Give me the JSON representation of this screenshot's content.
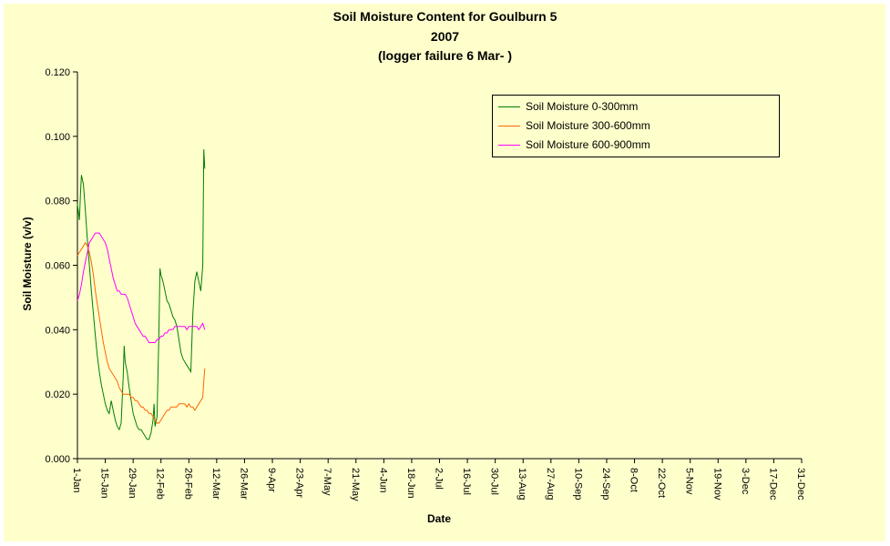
{
  "chart_data": {
    "type": "line",
    "title": [
      "Soil Moisture Content for Goulburn 5",
      "2007",
      "(logger failure 6 Mar-    )"
    ],
    "xlabel": "Date",
    "ylabel": "Soil Moisture (v/v)",
    "ylim": [
      0,
      0.12
    ],
    "yticks": [
      "0.000",
      "0.020",
      "0.040",
      "0.060",
      "0.080",
      "0.100",
      "0.120"
    ],
    "xticks": [
      "1-Jan",
      "15-Jan",
      "29-Jan",
      "12-Feb",
      "26-Feb",
      "12-Mar",
      "26-Mar",
      "9-Apr",
      "23-Apr",
      "7-May",
      "21-May",
      "4-Jun",
      "18-Jun",
      "2-Jul",
      "16-Jul",
      "30-Jul",
      "13-Aug",
      "27-Aug",
      "10-Sep",
      "24-Sep",
      "8-Oct",
      "22-Oct",
      "5-Nov",
      "19-Nov",
      "3-Dec",
      "17-Dec",
      "31-Dec"
    ],
    "xtick_days": [
      0,
      14,
      28,
      42,
      56,
      70,
      84,
      98,
      112,
      126,
      140,
      154,
      168,
      182,
      196,
      210,
      224,
      238,
      252,
      266,
      280,
      294,
      308,
      322,
      336,
      350,
      364
    ],
    "grid": false,
    "legend_position": "top-right",
    "series": [
      {
        "name": "Soil Moisture 0-300mm",
        "color": "#008000",
        "x": [
          0,
          1,
          1.5,
          2,
          3,
          4,
          5,
          6,
          7,
          8,
          9,
          10,
          11,
          12,
          13,
          14,
          15,
          16,
          17,
          18,
          19,
          20,
          21,
          22,
          23,
          23.5,
          24,
          25,
          26,
          27,
          28,
          29,
          30,
          31,
          32,
          33,
          34,
          35,
          36,
          37,
          38,
          38.5,
          39,
          40,
          41,
          41.5,
          42,
          43,
          44,
          45,
          46,
          47,
          48,
          49,
          50,
          51,
          52,
          53,
          54,
          55,
          56,
          57,
          58,
          59,
          60,
          61,
          62,
          63,
          63.5,
          64
        ],
        "y": [
          0.079,
          0.074,
          0.082,
          0.088,
          0.085,
          0.077,
          0.068,
          0.06,
          0.052,
          0.045,
          0.038,
          0.032,
          0.027,
          0.023,
          0.02,
          0.017,
          0.015,
          0.014,
          0.018,
          0.015,
          0.012,
          0.01,
          0.009,
          0.011,
          0.025,
          0.035,
          0.03,
          0.027,
          0.022,
          0.018,
          0.014,
          0.012,
          0.01,
          0.009,
          0.009,
          0.008,
          0.007,
          0.006,
          0.006,
          0.008,
          0.012,
          0.017,
          0.01,
          0.013,
          0.04,
          0.059,
          0.057,
          0.055,
          0.052,
          0.049,
          0.048,
          0.046,
          0.044,
          0.043,
          0.041,
          0.037,
          0.033,
          0.031,
          0.03,
          0.029,
          0.028,
          0.027,
          0.045,
          0.055,
          0.058,
          0.055,
          0.052,
          0.06,
          0.096,
          0.09
        ]
      },
      {
        "name": "Soil Moisture 300-600mm",
        "color": "#ff6600",
        "x": [
          0,
          1,
          2,
          3,
          4,
          5,
          6,
          7,
          8,
          9,
          10,
          11,
          12,
          13,
          14,
          15,
          16,
          17,
          18,
          19,
          20,
          21,
          22,
          23,
          24,
          25,
          26,
          27,
          28,
          29,
          30,
          31,
          32,
          33,
          34,
          35,
          36,
          37,
          38,
          39,
          40,
          41,
          42,
          43,
          44,
          45,
          46,
          47,
          48,
          49,
          50,
          51,
          52,
          53,
          54,
          55,
          56,
          57,
          58,
          59,
          60,
          61,
          62,
          63,
          63.5,
          64
        ],
        "y": [
          0.063,
          0.064,
          0.065,
          0.066,
          0.067,
          0.066,
          0.064,
          0.061,
          0.057,
          0.052,
          0.048,
          0.044,
          0.04,
          0.036,
          0.033,
          0.03,
          0.028,
          0.027,
          0.026,
          0.025,
          0.024,
          0.022,
          0.021,
          0.02,
          0.02,
          0.02,
          0.02,
          0.019,
          0.019,
          0.018,
          0.018,
          0.017,
          0.016,
          0.016,
          0.015,
          0.015,
          0.014,
          0.014,
          0.013,
          0.012,
          0.011,
          0.011,
          0.012,
          0.013,
          0.014,
          0.015,
          0.015,
          0.016,
          0.016,
          0.016,
          0.016,
          0.017,
          0.017,
          0.017,
          0.017,
          0.016,
          0.017,
          0.016,
          0.016,
          0.015,
          0.016,
          0.017,
          0.018,
          0.019,
          0.024,
          0.028
        ]
      },
      {
        "name": "Soil Moisture 600-900mm",
        "color": "#ff00ff",
        "x": [
          0,
          1,
          2,
          3,
          4,
          5,
          6,
          7,
          8,
          9,
          10,
          11,
          12,
          13,
          14,
          15,
          16,
          17,
          18,
          19,
          20,
          21,
          22,
          23,
          24,
          25,
          26,
          27,
          28,
          29,
          30,
          31,
          32,
          33,
          34,
          35,
          36,
          37,
          38,
          39,
          40,
          41,
          42,
          43,
          44,
          45,
          46,
          47,
          48,
          49,
          50,
          51,
          52,
          53,
          54,
          55,
          56,
          57,
          58,
          59,
          60,
          61,
          62,
          63,
          64
        ],
        "y": [
          0.049,
          0.051,
          0.054,
          0.058,
          0.061,
          0.064,
          0.067,
          0.068,
          0.069,
          0.07,
          0.07,
          0.07,
          0.069,
          0.068,
          0.067,
          0.065,
          0.062,
          0.059,
          0.056,
          0.054,
          0.052,
          0.052,
          0.051,
          0.051,
          0.051,
          0.05,
          0.048,
          0.046,
          0.044,
          0.042,
          0.041,
          0.04,
          0.039,
          0.038,
          0.038,
          0.037,
          0.036,
          0.036,
          0.036,
          0.036,
          0.037,
          0.037,
          0.038,
          0.038,
          0.039,
          0.039,
          0.04,
          0.04,
          0.04,
          0.041,
          0.041,
          0.041,
          0.041,
          0.041,
          0.041,
          0.04,
          0.041,
          0.041,
          0.041,
          0.041,
          0.041,
          0.04,
          0.041,
          0.042,
          0.04
        ]
      }
    ]
  }
}
